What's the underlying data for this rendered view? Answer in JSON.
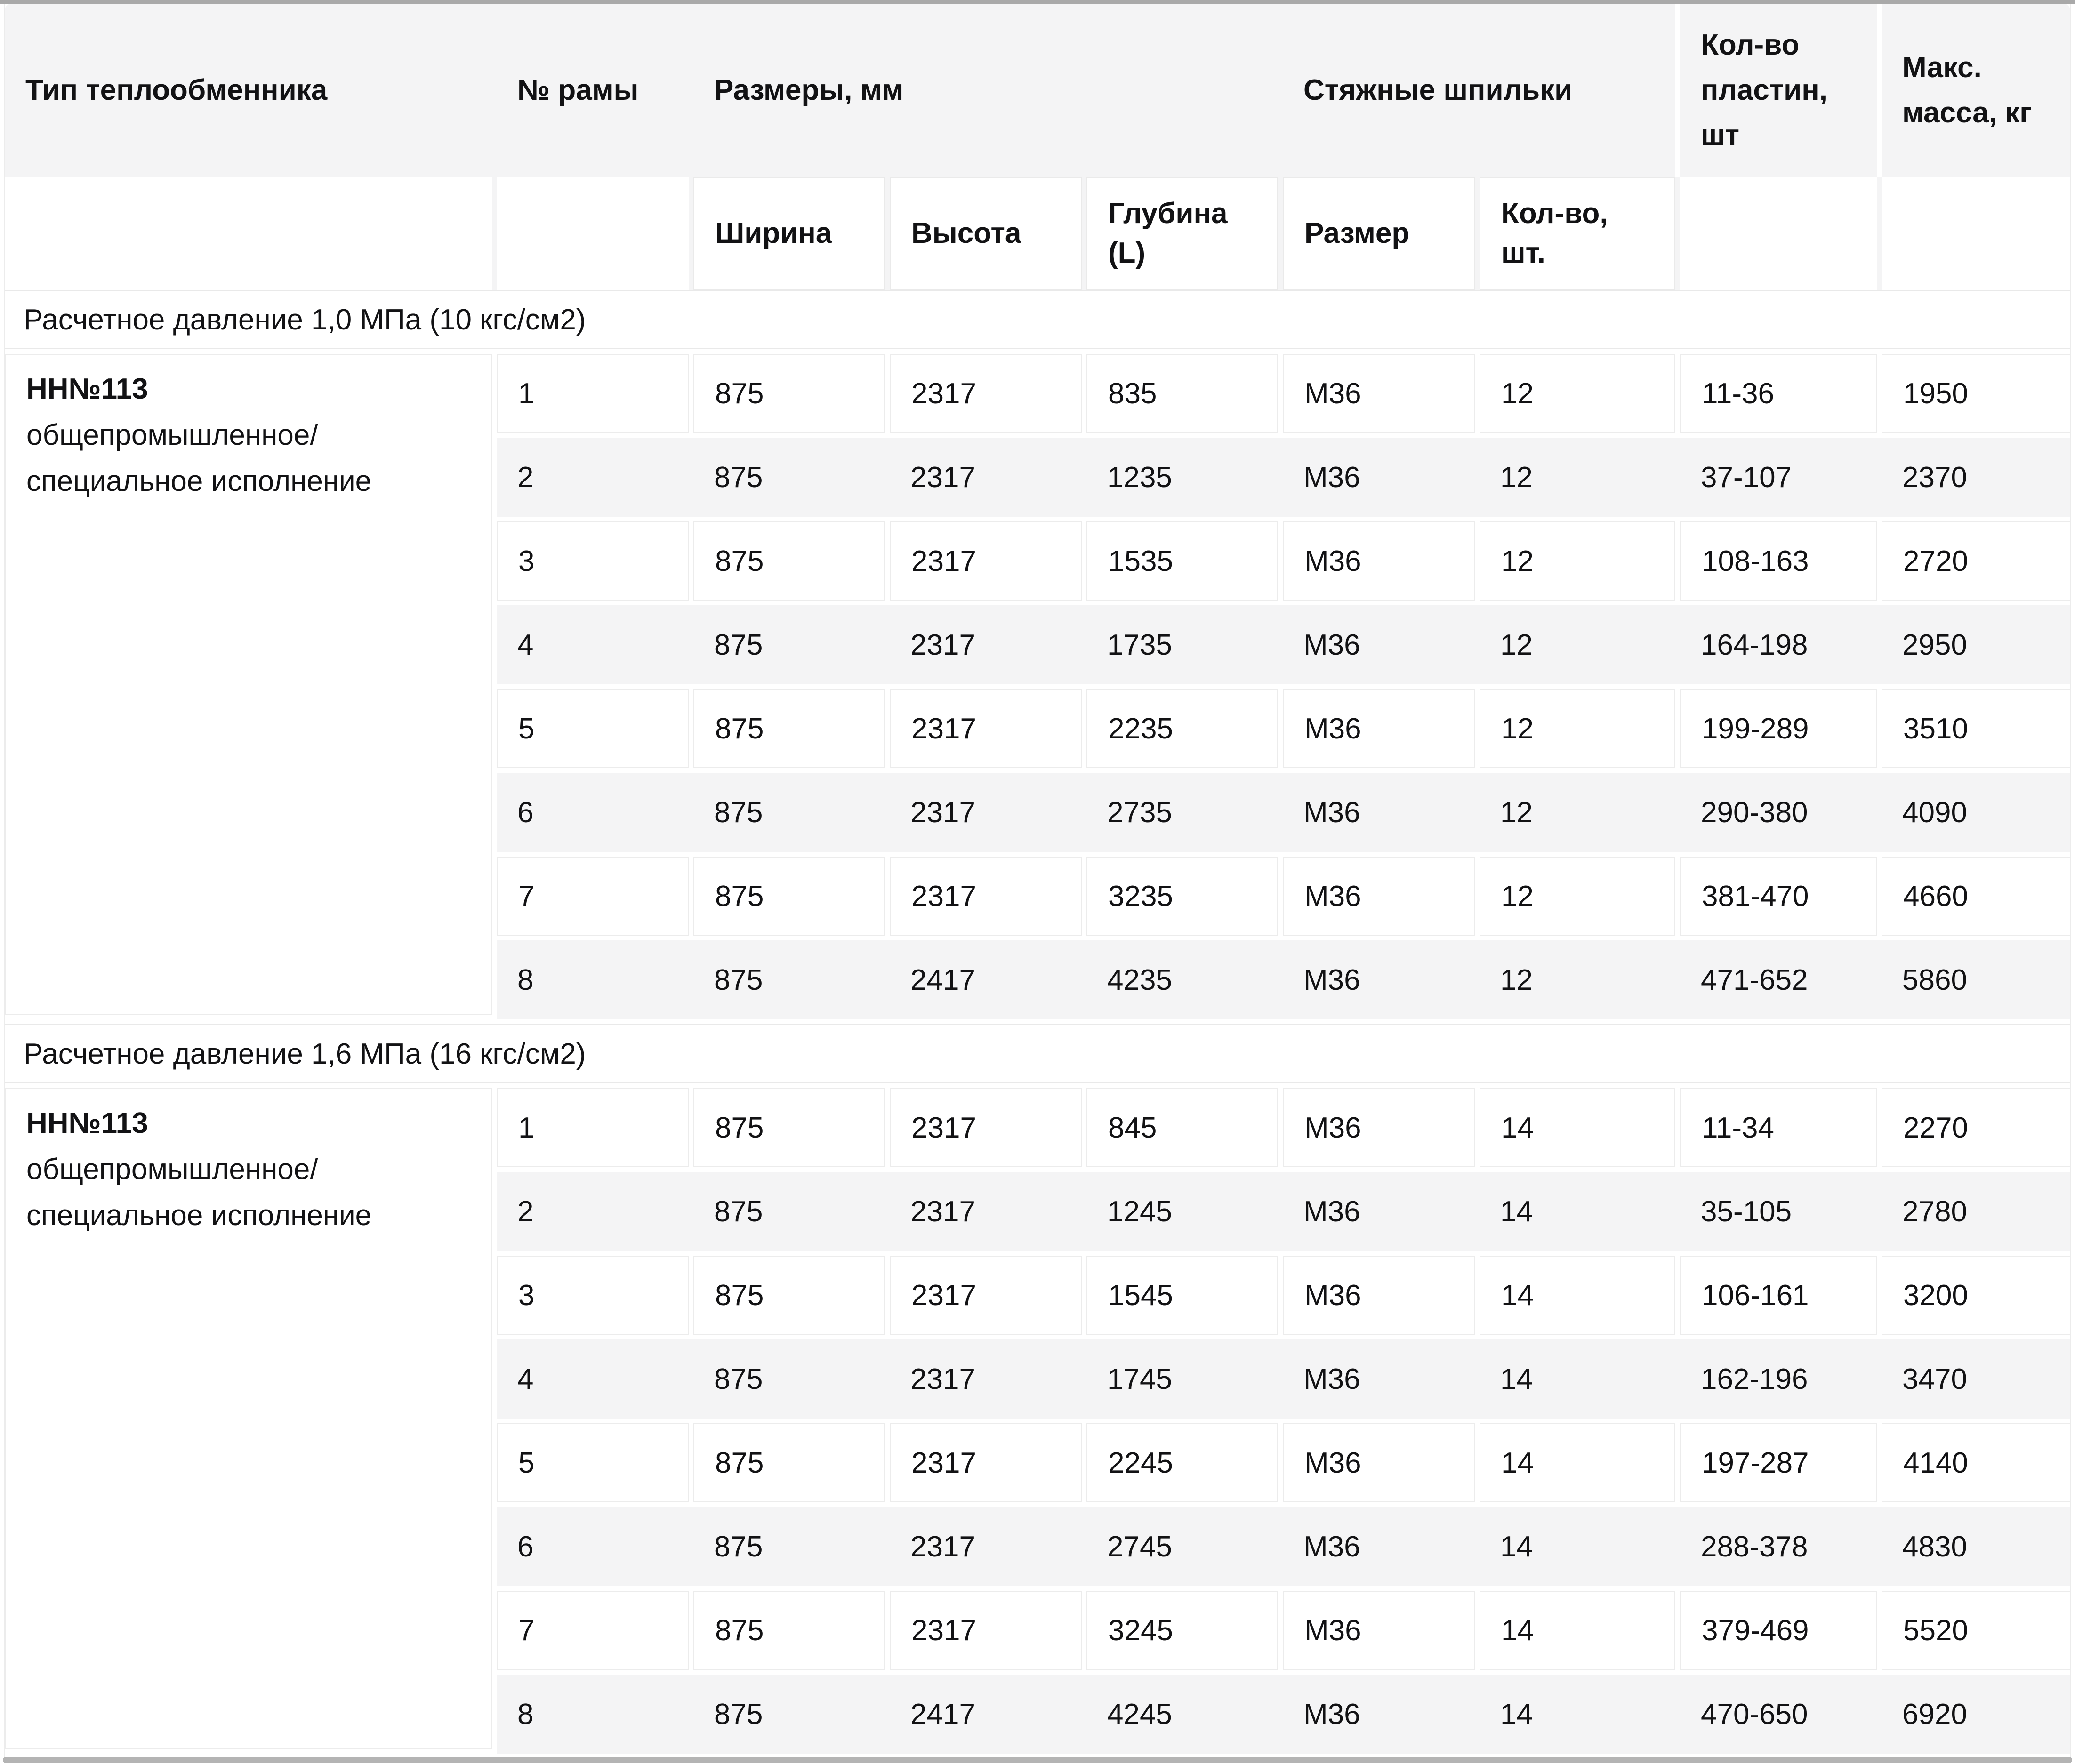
{
  "table": {
    "header": {
      "col_type": "Тип теплообменника",
      "col_frame": "№ рамы",
      "group_dimensions": "Размеры, мм",
      "sub_width": "Ширина",
      "sub_height": "Высота",
      "sub_depth": "Глубина (L)",
      "group_studs": "Стяжные шпильки",
      "sub_size": "Размер",
      "sub_qty": "Кол-во, шт.",
      "col_plates": "Кол-во пластин, шт",
      "col_mass": "Макс. масса, кг"
    },
    "sections": [
      {
        "title": "Расчетное давление 1,0 МПа (10 кгс/см2)",
        "type_name": "НН№113",
        "type_desc": "общепромышленное/специальное исполнение",
        "rows": [
          [
            "1",
            "875",
            "2317",
            "835",
            "М36",
            "12",
            "11-36",
            "1950"
          ],
          [
            "2",
            "875",
            "2317",
            "1235",
            "М36",
            "12",
            "37-107",
            "2370"
          ],
          [
            "3",
            "875",
            "2317",
            "1535",
            "М36",
            "12",
            "108-163",
            "2720"
          ],
          [
            "4",
            "875",
            "2317",
            "1735",
            "М36",
            "12",
            "164-198",
            "2950"
          ],
          [
            "5",
            "875",
            "2317",
            "2235",
            "М36",
            "12",
            "199-289",
            "3510"
          ],
          [
            "6",
            "875",
            "2317",
            "2735",
            "М36",
            "12",
            "290-380",
            "4090"
          ],
          [
            "7",
            "875",
            "2317",
            "3235",
            "М36",
            "12",
            "381-470",
            "4660"
          ],
          [
            "8",
            "875",
            "2417",
            "4235",
            "М36",
            "12",
            "471-652",
            "5860"
          ]
        ]
      },
      {
        "title": "Расчетное давление 1,6 МПа (16 кгс/см2)",
        "type_name": "НН№113",
        "type_desc": "общепромышленное/специальное исполнение",
        "rows": [
          [
            "1",
            "875",
            "2317",
            "845",
            "М36",
            "14",
            "11-34",
            "2270"
          ],
          [
            "2",
            "875",
            "2317",
            "1245",
            "М36",
            "14",
            "35-105",
            "2780"
          ],
          [
            "3",
            "875",
            "2317",
            "1545",
            "М36",
            "14",
            "106-161",
            "3200"
          ],
          [
            "4",
            "875",
            "2317",
            "1745",
            "М36",
            "14",
            "162-196",
            "3470"
          ],
          [
            "5",
            "875",
            "2317",
            "2245",
            "М36",
            "14",
            "197-287",
            "4140"
          ],
          [
            "6",
            "875",
            "2317",
            "2745",
            "М36",
            "14",
            "288-378",
            "4830"
          ],
          [
            "7",
            "875",
            "2317",
            "3245",
            "М36",
            "14",
            "379-469",
            "5520"
          ],
          [
            "8",
            "875",
            "2417",
            "4245",
            "М36",
            "14",
            "470-650",
            "6920"
          ]
        ]
      }
    ]
  }
}
